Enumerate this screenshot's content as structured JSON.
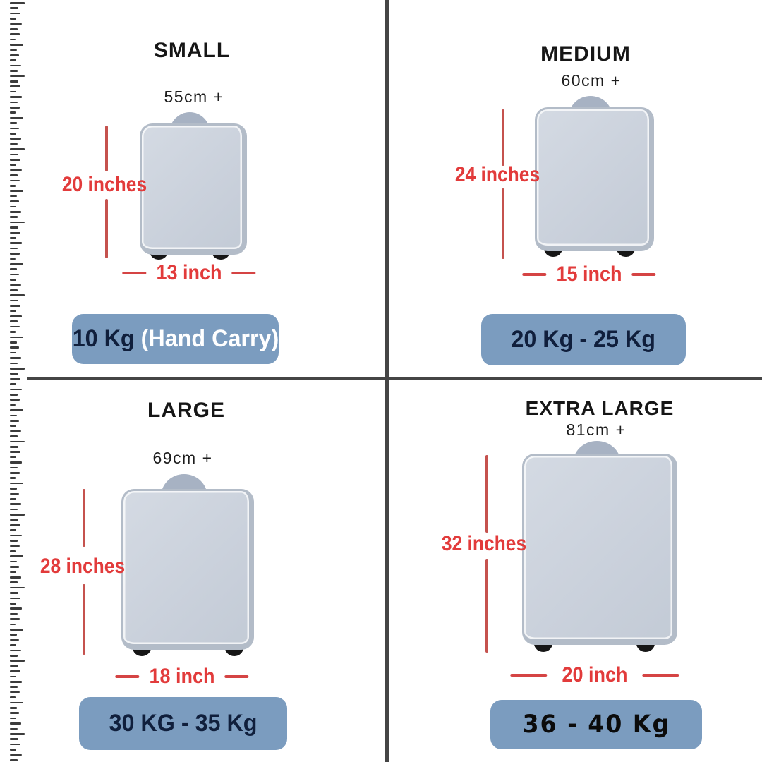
{
  "colors": {
    "accent_red_text": "#e23b3b",
    "line_red": "#c5524e",
    "label_blue": "#7b9cbf",
    "label_text_navy": "#101f3c",
    "suitcase_body": "#c9d0db",
    "suitcase_handle": "#a7b2c3",
    "divider_gray": "#454545"
  },
  "quadrants": [
    {
      "title": "SMALL",
      "top_dimension": "55cm +",
      "height_label": "20 inches",
      "width_label": "13 inch",
      "weight_primary": "10 Kg ",
      "weight_secondary": "(Hand Carry)"
    },
    {
      "title": "MEDIUM",
      "top_dimension": "60cm +",
      "height_label": "24 inches",
      "width_label": "15 inch",
      "weight_primary": "20 Kg - 25 Kg",
      "weight_secondary": ""
    },
    {
      "title": "LARGE",
      "top_dimension": "69cm +",
      "height_label": "28 inches",
      "width_label": "18 inch",
      "weight_primary": "30 KG - 35 Kg",
      "weight_secondary": ""
    },
    {
      "title": "EXTRA LARGE",
      "top_dimension": "81cm +",
      "height_label": "32 inches",
      "width_label": "20 inch",
      "weight_primary": "36 - 40 Kg",
      "weight_secondary": ""
    }
  ]
}
